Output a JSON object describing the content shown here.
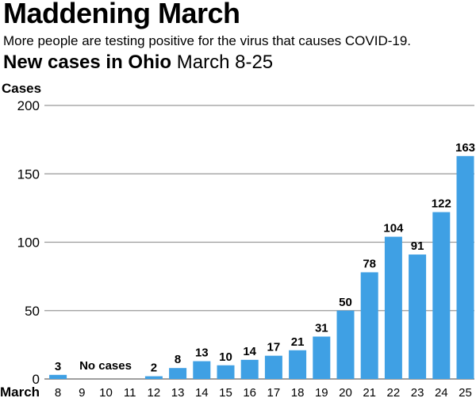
{
  "header": {
    "title": "Maddening March",
    "subtitle": "More people are testing positive for the virus that causes COVID-19.",
    "chart_title_bold": "New cases in Ohio",
    "chart_title_rest": "March 8-25"
  },
  "colors": {
    "bar": "#3fa0e4",
    "grid": "#999999",
    "text": "#000000"
  },
  "chart_data": {
    "type": "bar",
    "ylabel": "Cases",
    "xlabel": "March",
    "ylim": [
      0,
      200
    ],
    "yticks": [
      0,
      50,
      100,
      150,
      200
    ],
    "categories": [
      "8",
      "9",
      "10",
      "11",
      "12",
      "13",
      "14",
      "15",
      "16",
      "17",
      "18",
      "19",
      "20",
      "21",
      "22",
      "23",
      "24",
      "25"
    ],
    "values": [
      3,
      0,
      0,
      0,
      2,
      8,
      13,
      10,
      14,
      17,
      21,
      31,
      50,
      78,
      104,
      91,
      122,
      163
    ],
    "annotations": [
      {
        "text": "No cases",
        "span": [
          "9",
          "11"
        ]
      }
    ],
    "grid": true
  }
}
